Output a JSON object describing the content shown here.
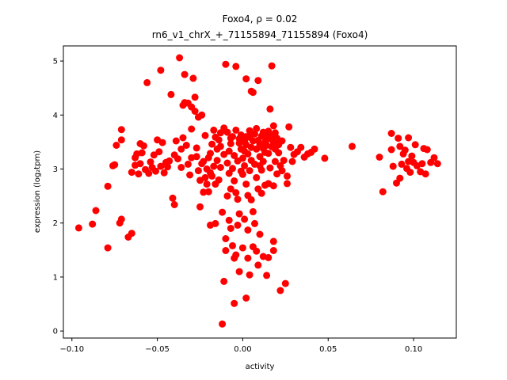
{
  "chart_data": {
    "type": "scatter",
    "title_line1": "Foxo4, ρ = 0.02",
    "title_line2": "rn6_v1_chrX_+_71155894_71155894 (Foxo4)",
    "xlabel": "activity",
    "ylabel": "expression (log₂tpm)",
    "xlim": [
      -0.105,
      0.125
    ],
    "ylim": [
      -0.13,
      5.28
    ],
    "xticks": [
      -0.1,
      -0.05,
      0.0,
      0.05,
      0.1
    ],
    "xtick_labels": [
      "−0.10",
      "−0.05",
      "0.00",
      "0.05",
      "0.10"
    ],
    "yticks": [
      0,
      1,
      2,
      3,
      4,
      5
    ],
    "ytick_labels": [
      "0",
      "1",
      "2",
      "3",
      "4",
      "5"
    ],
    "grid": false,
    "marker_color": "#ff0000",
    "points": [
      [
        -0.096,
        1.91
      ],
      [
        -0.088,
        1.98
      ],
      [
        -0.086,
        2.23
      ],
      [
        -0.079,
        1.54
      ],
      [
        -0.079,
        2.68
      ],
      [
        -0.076,
        3.06
      ],
      [
        -0.075,
        3.08
      ],
      [
        -0.074,
        3.44
      ],
      [
        -0.072,
        2.0
      ],
      [
        -0.071,
        2.07
      ],
      [
        -0.071,
        3.73
      ],
      [
        -0.071,
        3.54
      ],
      [
        -0.067,
        1.74
      ],
      [
        -0.065,
        1.81
      ],
      [
        -0.065,
        2.94
      ],
      [
        -0.063,
        3.21
      ],
      [
        -0.063,
        3.07
      ],
      [
        -0.062,
        3.28
      ],
      [
        -0.061,
        2.91
      ],
      [
        -0.06,
        3.47
      ],
      [
        -0.059,
        3.3
      ],
      [
        -0.058,
        3.43
      ],
      [
        -0.057,
        2.99
      ],
      [
        -0.056,
        4.6
      ],
      [
        -0.055,
        2.92
      ],
      [
        -0.054,
        3.13
      ],
      [
        -0.053,
        3.03
      ],
      [
        -0.052,
        3.26
      ],
      [
        -0.051,
        2.96
      ],
      [
        -0.05,
        3.54
      ],
      [
        -0.049,
        3.32
      ],
      [
        -0.048,
        4.83
      ],
      [
        -0.047,
        3.49
      ],
      [
        -0.046,
        2.93
      ],
      [
        -0.045,
        3.12
      ],
      [
        -0.044,
        3.04
      ],
      [
        -0.043,
        3.15
      ],
      [
        -0.042,
        4.38
      ],
      [
        -0.041,
        2.46
      ],
      [
        -0.04,
        2.34
      ],
      [
        -0.039,
        3.52
      ],
      [
        -0.038,
        3.19
      ],
      [
        -0.037,
        5.06
      ],
      [
        -0.036,
        3.03
      ],
      [
        -0.036,
        3.37
      ],
      [
        -0.035,
        4.18
      ],
      [
        -0.035,
        3.58
      ],
      [
        -0.034,
        4.23
      ],
      [
        -0.034,
        4.75
      ],
      [
        -0.033,
        3.44
      ],
      [
        -0.032,
        3.09
      ],
      [
        -0.032,
        4.22
      ],
      [
        -0.031,
        2.89
      ],
      [
        -0.03,
        4.15
      ],
      [
        -0.03,
        3.74
      ],
      [
        -0.029,
        4.68
      ],
      [
        -0.028,
        4.07
      ],
      [
        -0.028,
        4.33
      ],
      [
        -0.027,
        3.39
      ],
      [
        -0.027,
        3.23
      ],
      [
        -0.026,
        2.97
      ],
      [
        -0.026,
        3.96
      ],
      [
        -0.025,
        2.79
      ],
      [
        -0.025,
        2.3
      ],
      [
        -0.024,
        3.1
      ],
      [
        -0.024,
        4.0
      ],
      [
        -0.023,
        2.57
      ],
      [
        -0.023,
        3.14
      ],
      [
        -0.022,
        3.62
      ],
      [
        -0.022,
        2.84
      ],
      [
        -0.021,
        2.72
      ],
      [
        -0.021,
        3.0
      ],
      [
        -0.02,
        2.58
      ],
      [
        -0.02,
        3.21
      ],
      [
        -0.019,
        2.93
      ],
      [
        -0.019,
        3.29
      ],
      [
        -0.019,
        1.96
      ],
      [
        -0.018,
        3.46
      ],
      [
        -0.018,
        2.87
      ],
      [
        -0.017,
        3.72
      ],
      [
        -0.017,
        3.05
      ],
      [
        -0.016,
        3.59
      ],
      [
        -0.016,
        2.72
      ],
      [
        -0.016,
        1.99
      ],
      [
        -0.015,
        3.37
      ],
      [
        -0.015,
        3.16
      ],
      [
        -0.014,
        3.54
      ],
      [
        -0.014,
        2.8
      ],
      [
        -0.013,
        3.67
      ],
      [
        -0.013,
        3.03
      ],
      [
        -0.012,
        0.13
      ],
      [
        -0.012,
        2.2
      ],
      [
        -0.011,
        0.92
      ],
      [
        -0.011,
        3.27
      ],
      [
        -0.011,
        3.76
      ],
      [
        -0.01,
        1.71
      ],
      [
        -0.01,
        1.49
      ],
      [
        -0.01,
        4.94
      ],
      [
        -0.009,
        2.5
      ],
      [
        -0.009,
        3.11
      ],
      [
        -0.009,
        3.68
      ],
      [
        -0.008,
        2.05
      ],
      [
        -0.008,
        3.33
      ],
      [
        -0.008,
        2.92
      ],
      [
        -0.007,
        1.9
      ],
      [
        -0.007,
        3.47
      ],
      [
        -0.007,
        2.63
      ],
      [
        -0.006,
        1.58
      ],
      [
        -0.006,
        3.6
      ],
      [
        -0.006,
        3.01
      ],
      [
        -0.005,
        1.35
      ],
      [
        -0.005,
        2.78
      ],
      [
        -0.005,
        3.25
      ],
      [
        -0.005,
        0.51
      ],
      [
        -0.004,
        1.41
      ],
      [
        -0.004,
        2.56
      ],
      [
        -0.004,
        3.72
      ],
      [
        -0.004,
        4.9
      ],
      [
        -0.003,
        1.96
      ],
      [
        -0.003,
        3.15
      ],
      [
        -0.003,
        2.44
      ],
      [
        -0.002,
        3.48
      ],
      [
        -0.002,
        2.17
      ],
      [
        -0.002,
        1.1
      ],
      [
        -0.002,
        3.56
      ],
      [
        -0.001,
        2.96
      ],
      [
        -0.001,
        3.37
      ],
      [
        -0.001,
        3.63
      ],
      [
        0.0,
        1.54
      ],
      [
        0.0,
        2.9
      ],
      [
        0.0,
        3.2
      ],
      [
        0.001,
        3.52
      ],
      [
        0.001,
        2.07
      ],
      [
        0.001,
        3.06
      ],
      [
        0.001,
        3.33
      ],
      [
        0.002,
        3.6
      ],
      [
        0.002,
        0.61
      ],
      [
        0.002,
        2.72
      ],
      [
        0.002,
        3.45
      ],
      [
        0.002,
        4.67
      ],
      [
        0.003,
        1.35
      ],
      [
        0.003,
        2.51
      ],
      [
        0.003,
        3.28
      ],
      [
        0.003,
        1.87
      ],
      [
        0.004,
        1.04
      ],
      [
        0.004,
        3.59
      ],
      [
        0.004,
        2.97
      ],
      [
        0.005,
        3.4
      ],
      [
        0.005,
        4.44
      ],
      [
        0.005,
        3.16
      ],
      [
        0.005,
        2.43
      ],
      [
        0.006,
        1.56
      ],
      [
        0.006,
        3.52
      ],
      [
        0.006,
        4.42
      ],
      [
        0.006,
        2.21
      ],
      [
        0.007,
        3.09
      ],
      [
        0.007,
        1.99
      ],
      [
        0.007,
        3.65
      ],
      [
        0.008,
        1.48
      ],
      [
        0.008,
        2.84
      ],
      [
        0.008,
        3.37
      ],
      [
        0.008,
        3.75
      ],
      [
        0.009,
        4.64
      ],
      [
        0.009,
        1.22
      ],
      [
        0.009,
        2.63
      ],
      [
        0.009,
        3.53
      ],
      [
        0.01,
        3.23
      ],
      [
        0.01,
        1.79
      ],
      [
        0.01,
        3.45
      ],
      [
        0.011,
        2.98
      ],
      [
        0.011,
        3.61
      ],
      [
        0.011,
        2.55
      ],
      [
        0.012,
        3.38
      ],
      [
        0.012,
        3.68
      ],
      [
        0.012,
        1.38
      ],
      [
        0.012,
        3.14
      ],
      [
        0.013,
        2.7
      ],
      [
        0.013,
        3.5
      ],
      [
        0.013,
        3.31
      ],
      [
        0.014,
        1.03
      ],
      [
        0.014,
        3.59
      ],
      [
        0.014,
        3.44
      ],
      [
        0.015,
        1.36
      ],
      [
        0.015,
        2.73
      ],
      [
        0.015,
        3.29
      ],
      [
        0.015,
        3.7
      ],
      [
        0.016,
        4.11
      ],
      [
        0.016,
        3.56
      ],
      [
        0.016,
        3.02
      ],
      [
        0.017,
        3.62
      ],
      [
        0.017,
        3.41
      ],
      [
        0.017,
        4.91
      ],
      [
        0.018,
        1.66
      ],
      [
        0.018,
        3.5
      ],
      [
        0.018,
        2.69
      ],
      [
        0.018,
        1.49
      ],
      [
        0.019,
        3.37
      ],
      [
        0.019,
        3.67
      ],
      [
        0.019,
        3.14
      ],
      [
        0.02,
        3.57
      ],
      [
        0.02,
        2.91
      ],
      [
        0.021,
        3.45
      ],
      [
        0.021,
        3.3
      ],
      [
        0.022,
        3.06
      ],
      [
        0.022,
        0.75
      ],
      [
        0.023,
        3.52
      ],
      [
        0.023,
        2.97
      ],
      [
        0.024,
        3.16
      ],
      [
        0.025,
        0.88
      ],
      [
        0.026,
        2.73
      ],
      [
        0.026,
        2.87
      ],
      [
        0.027,
        3.78
      ],
      [
        0.028,
        3.4
      ],
      [
        0.029,
        3.14
      ],
      [
        0.03,
        3.27
      ],
      [
        0.032,
        3.32
      ],
      [
        0.034,
        3.4
      ],
      [
        0.036,
        3.22
      ],
      [
        0.038,
        3.28
      ],
      [
        0.04,
        3.31
      ],
      [
        0.042,
        3.37
      ],
      [
        0.048,
        3.2
      ],
      [
        0.064,
        3.42
      ],
      [
        0.08,
        3.22
      ],
      [
        0.082,
        2.58
      ],
      [
        0.087,
        3.36
      ],
      [
        0.087,
        3.66
      ],
      [
        0.088,
        3.05
      ],
      [
        0.09,
        2.74
      ],
      [
        0.091,
        3.57
      ],
      [
        0.092,
        2.83
      ],
      [
        0.092,
        3.42
      ],
      [
        0.093,
        3.09
      ],
      [
        0.094,
        3.28
      ],
      [
        0.095,
        3.35
      ],
      [
        0.096,
        3.01
      ],
      [
        0.097,
        3.14
      ],
      [
        0.097,
        3.58
      ],
      [
        0.098,
        2.94
      ],
      [
        0.099,
        3.24
      ],
      [
        0.1,
        3.12
      ],
      [
        0.101,
        3.45
      ],
      [
        0.102,
        3.06
      ],
      [
        0.104,
        2.95
      ],
      [
        0.105,
        3.1
      ],
      [
        0.106,
        3.38
      ],
      [
        0.107,
        2.91
      ],
      [
        0.108,
        3.36
      ],
      [
        0.11,
        3.12
      ],
      [
        0.112,
        3.21
      ],
      [
        0.114,
        3.1
      ],
      [
        -0.06,
        3.1
      ],
      [
        -0.048,
        3.05
      ],
      [
        -0.04,
        3.26
      ],
      [
        -0.03,
        3.21
      ],
      [
        -0.013,
        3.42
      ],
      [
        -0.007,
        3.57
      ],
      [
        0.004,
        3.71
      ],
      [
        0.01,
        3.06
      ],
      [
        0.018,
        3.8
      ]
    ]
  }
}
